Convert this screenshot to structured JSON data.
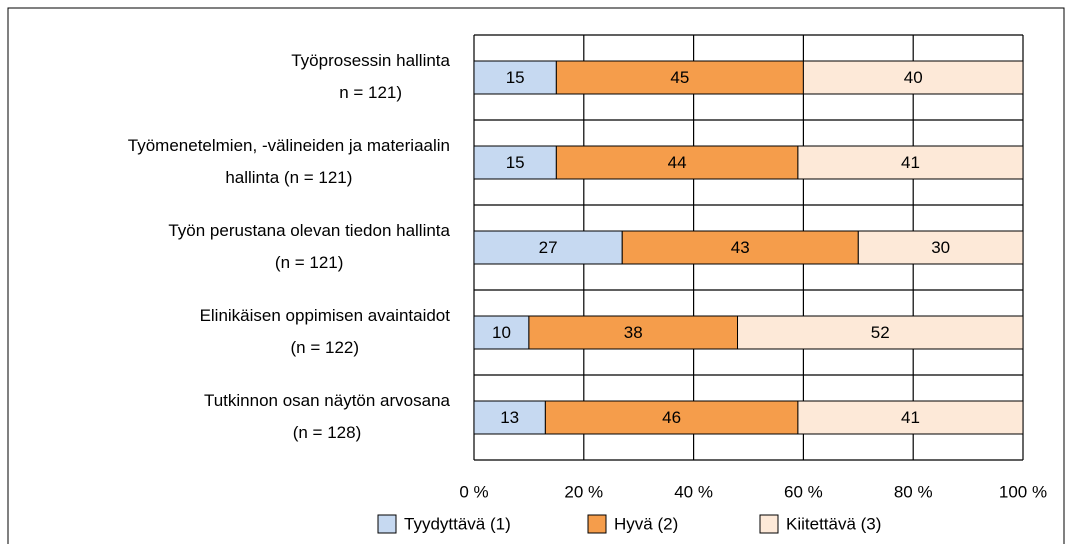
{
  "chart_data": {
    "type": "stacked-bar-horizontal",
    "categories": [
      [
        "Työprosessin hallinta",
        "n = 121)"
      ],
      [
        "Työmenetelmien, -välineiden ja materiaalin",
        "hallinta (n = 121)"
      ],
      [
        "Työn perustana olevan tiedon hallinta",
        "(n = 121)"
      ],
      [
        "Elinikäisen oppimisen avaintaidot",
        "(n = 122)"
      ],
      [
        "Tutkinnon osan näytön arvosana",
        "(n = 128)"
      ]
    ],
    "series": [
      {
        "name": "Tyydyttävä (1)",
        "color": "#c6d9f1",
        "values": [
          15,
          15,
          27,
          10,
          13
        ]
      },
      {
        "name": "Hyvä (2)",
        "color": "#f59d4b",
        "values": [
          45,
          44,
          43,
          38,
          46
        ]
      },
      {
        "name": "Kiitettävä (3)",
        "color": "#fde9d8",
        "values": [
          40,
          41,
          30,
          52,
          41
        ]
      }
    ],
    "xlim": [
      0,
      100
    ],
    "xticks": [
      {
        "value": 0,
        "label": "0 %"
      },
      {
        "value": 20,
        "label": "20 %"
      },
      {
        "value": 40,
        "label": "40 %"
      },
      {
        "value": 60,
        "label": "60 %"
      },
      {
        "value": 80,
        "label": "80 %"
      },
      {
        "value": 100,
        "label": "100 %"
      }
    ],
    "grid": true,
    "legend": "bottom"
  }
}
